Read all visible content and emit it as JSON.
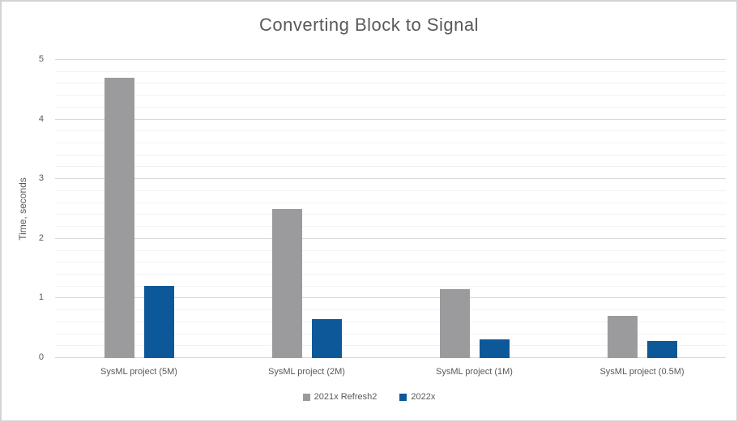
{
  "chart_data": {
    "type": "bar",
    "title": "Converting Block to Signal",
    "xlabel": "",
    "ylabel": "Time, seconds",
    "categories": [
      "SysML project (5M)",
      "SysML project (2M)",
      "SysML project (1M)",
      "SysML project (0.5M)"
    ],
    "series": [
      {
        "name": "2021x Refresh2",
        "color": "#9b9b9d",
        "values": [
          4.7,
          2.5,
          1.15,
          0.7
        ]
      },
      {
        "name": "2022x",
        "color": "#0d5898",
        "values": [
          1.21,
          0.65,
          0.31,
          0.28
        ]
      }
    ],
    "ylim": [
      0,
      5
    ],
    "y_major_step": 1,
    "y_minor_step": 0.2,
    "y_tick_labels": [
      "0",
      "1",
      "2",
      "3",
      "4",
      "5"
    ],
    "grid": "major+minor",
    "legend_position": "bottom",
    "colors": {
      "title_text": "#595959",
      "axis_text": "#595959",
      "major_gridline": "#d9d9d9",
      "minor_gridline": "#f2f2f2",
      "frame_border": "#d3d3d3"
    }
  }
}
